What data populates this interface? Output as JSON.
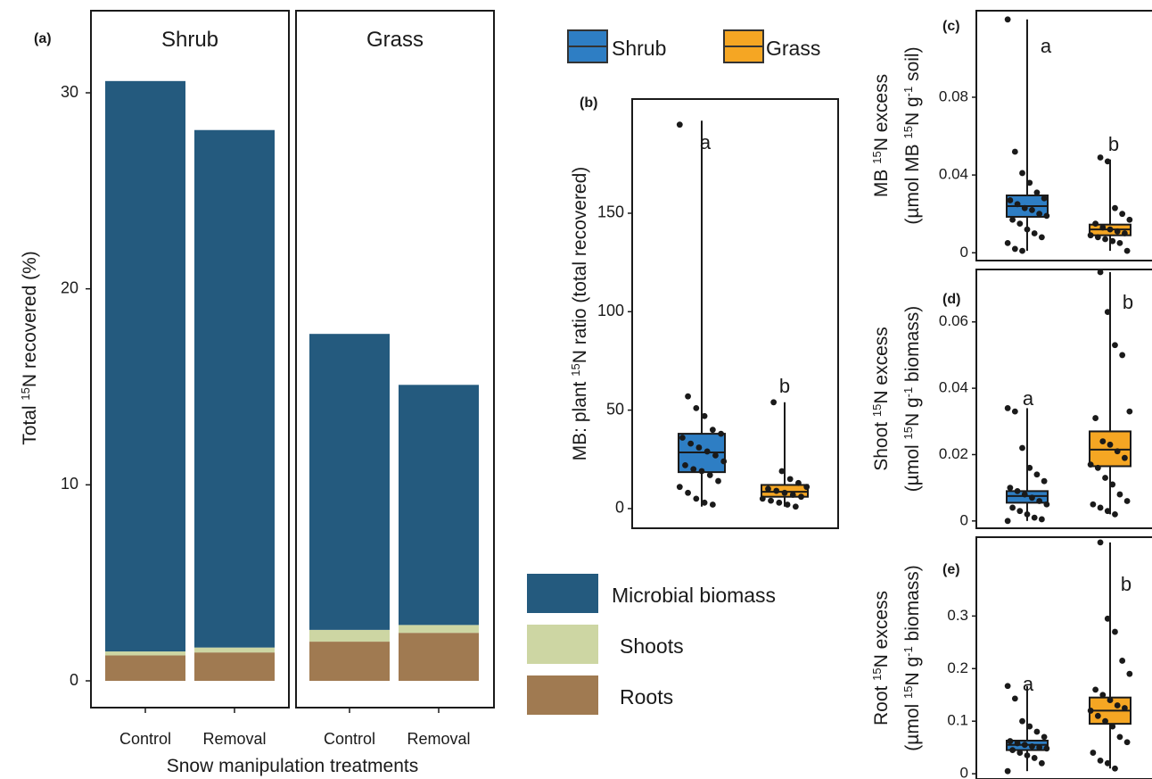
{
  "chart_data": [
    {
      "id": "a",
      "type": "bar",
      "stacked": true,
      "panel_label": "(a)",
      "facets": [
        "Shrub",
        "Grass"
      ],
      "categories": [
        "Control",
        "Removal"
      ],
      "xlabel": "Snow manipulation treatments",
      "ylabel_pre": "Total ",
      "ylabel_sup": "15",
      "ylabel_post": "N recovered (%)",
      "yticks": [
        0,
        10,
        20,
        30
      ],
      "ylim": [
        0,
        32.5
      ],
      "series": [
        {
          "name": "Roots",
          "color": "#A07A51",
          "values": {
            "Shrub": [
              1.3,
              1.45
            ],
            "Grass": [
              2.0,
              2.45
            ]
          }
        },
        {
          "name": "Shoots",
          "color": "#CDD6A3",
          "values": {
            "Shrub": [
              0.2,
              0.25
            ],
            "Grass": [
              0.6,
              0.4
            ]
          }
        },
        {
          "name": "Microbial biomass",
          "color": "#245A7E",
          "values": {
            "Shrub": [
              29.1,
              26.4
            ],
            "Grass": [
              15.1,
              12.25
            ]
          }
        }
      ]
    },
    {
      "id": "b",
      "type": "box",
      "panel_label": "(b)",
      "ylabel_pre": "MB: plant ",
      "ylabel_sup": "15",
      "ylabel_post": "N ratio (total recovered)",
      "yticks": [
        "0",
        "50",
        "100",
        "150"
      ],
      "ylim": [
        -10,
        208
      ],
      "groups": [
        {
          "name": "Shrub",
          "color": "#2E7EC4",
          "letter": "a",
          "q1": 18.5,
          "median": 28.5,
          "q3": 38,
          "whisker_low": 1,
          "whisker_high": 197,
          "points": [
            195,
            57,
            51,
            47,
            40,
            38,
            36,
            33,
            31,
            29,
            27,
            24,
            22,
            20,
            19,
            17,
            14,
            11,
            8,
            5,
            3,
            2
          ]
        },
        {
          "name": "Grass",
          "color": "#F5A623",
          "letter": "b",
          "q1": 6,
          "median": 8.5,
          "q3": 12,
          "whisker_low": 1,
          "whisker_high": 54,
          "points": [
            54,
            19,
            15,
            13,
            11,
            10,
            9,
            8,
            7,
            6,
            5,
            4,
            3,
            2,
            1
          ]
        }
      ]
    },
    {
      "id": "c",
      "type": "box",
      "panel_label": "(c)",
      "ylabel_line1_pre": "MB ",
      "ylabel_line1_sup": "15",
      "ylabel_line1_post": "N excess",
      "ylabel_line2_a": "(µmol MB ",
      "ylabel_line2_sup1": "15",
      "ylabel_line2_b": "N g",
      "ylabel_line2_sup2": "-1",
      "ylabel_line2_c": " soil)",
      "yticks": [
        "0",
        "0.04",
        "0.08"
      ],
      "ylim": [
        -0.004,
        0.1245
      ],
      "groups": [
        {
          "name": "Shrub",
          "color": "#2E7EC4",
          "letter": "a",
          "q1": 0.0185,
          "median": 0.024,
          "q3": 0.0295,
          "whisker_low": 0.001,
          "whisker_high": 0.12,
          "points": [
            0.12,
            0.052,
            0.041,
            0.036,
            0.031,
            0.028,
            0.027,
            0.025,
            0.023,
            0.022,
            0.02,
            0.019,
            0.017,
            0.015,
            0.012,
            0.01,
            0.008,
            0.005,
            0.002,
            0.001
          ]
        },
        {
          "name": "Grass",
          "color": "#F5A623",
          "letter": "b",
          "q1": 0.009,
          "median": 0.012,
          "q3": 0.0145,
          "whisker_low": 0.001,
          "whisker_high": 0.048,
          "points": [
            0.049,
            0.047,
            0.023,
            0.02,
            0.017,
            0.015,
            0.013,
            0.012,
            0.011,
            0.01,
            0.009,
            0.008,
            0.007,
            0.006,
            0.005,
            0.001
          ]
        }
      ]
    },
    {
      "id": "d",
      "type": "box",
      "panel_label": "(d)",
      "ylabel_line1_pre": "Shoot ",
      "ylabel_line1_sup": "15",
      "ylabel_line1_post": "N excess",
      "ylabel_line2_a": "(µmol ",
      "ylabel_line2_sup1": "15",
      "ylabel_line2_b": "N g",
      "ylabel_line2_sup2": "-1",
      "ylabel_line2_c": " biomass)",
      "yticks": [
        "0",
        "0.02",
        "0.04",
        "0.06"
      ],
      "ylim": [
        -0.0022,
        0.0758
      ],
      "groups": [
        {
          "name": "Shrub",
          "color": "#2E7EC4",
          "letter": "a",
          "q1": 0.0055,
          "median": 0.0075,
          "q3": 0.009,
          "whisker_low": 0,
          "whisker_high": 0.034,
          "points": [
            0.034,
            0.033,
            0.022,
            0.016,
            0.014,
            0.012,
            0.01,
            0.009,
            0.008,
            0.007,
            0.006,
            0.005,
            0.004,
            0.003,
            0.002,
            0.001,
            0.0005,
            0
          ]
        },
        {
          "name": "Grass",
          "color": "#F5A623",
          "letter": "b",
          "q1": 0.0165,
          "median": 0.0215,
          "q3": 0.027,
          "whisker_low": 0.002,
          "whisker_high": 0.075,
          "points": [
            0.075,
            0.063,
            0.053,
            0.05,
            0.033,
            0.031,
            0.024,
            0.023,
            0.021,
            0.019,
            0.017,
            0.016,
            0.013,
            0.011,
            0.008,
            0.006,
            0.005,
            0.004,
            0.003,
            0.002
          ]
        }
      ]
    },
    {
      "id": "e",
      "type": "box",
      "panel_label": "(e)",
      "ylabel_line1_pre": "Root ",
      "ylabel_line1_sup": "15",
      "ylabel_line1_post": "N excess",
      "ylabel_line2_a": "(µmol ",
      "ylabel_line2_sup1": "15",
      "ylabel_line2_b": "N g",
      "ylabel_line2_sup2": "-1",
      "ylabel_line2_c": " biomass)",
      "yticks": [
        "0",
        "0.1",
        "0.2",
        "0.3"
      ],
      "ylim": [
        -0.01,
        0.45
      ],
      "groups": [
        {
          "name": "Shrub",
          "color": "#2E7EC4",
          "letter": "a",
          "q1": 0.045,
          "median": 0.055,
          "q3": 0.063,
          "whisker_low": 0.005,
          "whisker_high": 0.167,
          "points": [
            0.167,
            0.143,
            0.1,
            0.09,
            0.08,
            0.07,
            0.062,
            0.058,
            0.055,
            0.052,
            0.05,
            0.048,
            0.045,
            0.04,
            0.035,
            0.03,
            0.02,
            0.005
          ]
        },
        {
          "name": "Grass",
          "color": "#F5A623",
          "letter": "b",
          "q1": 0.095,
          "median": 0.12,
          "q3": 0.145,
          "whisker_low": 0.01,
          "whisker_high": 0.44,
          "points": [
            0.44,
            0.295,
            0.27,
            0.215,
            0.19,
            0.16,
            0.15,
            0.14,
            0.13,
            0.125,
            0.12,
            0.11,
            0.1,
            0.09,
            0.07,
            0.06,
            0.04,
            0.025,
            0.02,
            0.01
          ]
        }
      ]
    }
  ],
  "legend_groups": [
    {
      "label": "Shrub",
      "color": "#2E7EC4"
    },
    {
      "label": "Grass",
      "color": "#F5A623"
    }
  ],
  "legend_components": [
    {
      "label": "Microbial biomass",
      "color": "#245A7E"
    },
    {
      "label": "Shoots",
      "color": "#CDD6A3"
    },
    {
      "label": "Roots",
      "color": "#A07A51"
    }
  ]
}
